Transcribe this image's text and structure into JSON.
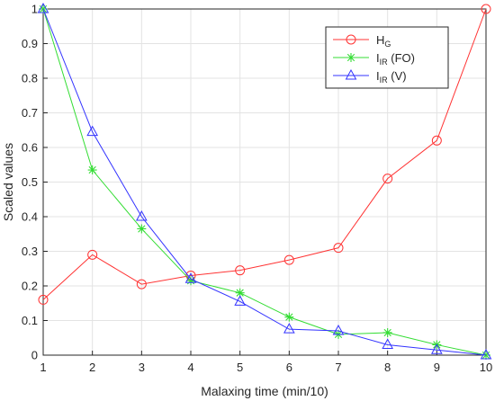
{
  "chart_data": {
    "type": "line",
    "xlabel": "Malaxing time (min/10)",
    "ylabel": "Scaled values",
    "xlim": [
      1,
      10
    ],
    "ylim": [
      0,
      1
    ],
    "grid": true,
    "legend_position": "top-right",
    "x": [
      1,
      2,
      3,
      4,
      5,
      6,
      7,
      8,
      9,
      10
    ],
    "x_ticks": [
      "1",
      "2",
      "3",
      "4",
      "5",
      "6",
      "7",
      "8",
      "9",
      "10"
    ],
    "y_ticks": [
      "0",
      "0.1",
      "0.2",
      "0.3",
      "0.4",
      "0.5",
      "0.6",
      "0.7",
      "0.8",
      "0.9",
      "1"
    ],
    "series": [
      {
        "name": "H_G",
        "legend_main": "H",
        "legend_sub": "G",
        "legend_suffix": "",
        "color": "#ff3333",
        "marker": "circle",
        "values": [
          0.16,
          0.29,
          0.205,
          0.23,
          0.245,
          0.275,
          0.31,
          0.51,
          0.62,
          1.0
        ]
      },
      {
        "name": "I_IR (FO)",
        "legend_main": "I",
        "legend_sub": "IR",
        "legend_suffix": " (FO)",
        "color": "#33dd33",
        "marker": "asterisk",
        "values": [
          1.0,
          0.535,
          0.365,
          0.215,
          0.18,
          0.11,
          0.06,
          0.065,
          0.03,
          0.0
        ]
      },
      {
        "name": "I_IR (V)",
        "legend_main": "I",
        "legend_sub": "IR",
        "legend_suffix": " (V)",
        "color": "#3333ff",
        "marker": "triangle",
        "values": [
          1.0,
          0.645,
          0.4,
          0.22,
          0.155,
          0.075,
          0.07,
          0.03,
          0.015,
          0.0
        ]
      }
    ]
  }
}
